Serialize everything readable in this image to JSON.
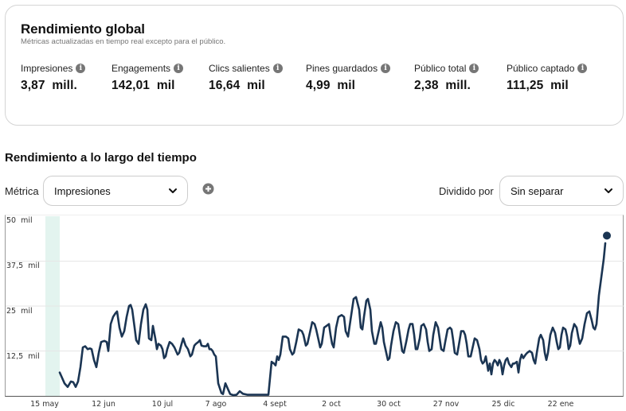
{
  "global": {
    "title": "Rendimiento global",
    "subtitle": "Métricas actualizadas en tiempo real excepto para el público.",
    "metrics": [
      {
        "label": "Impresiones",
        "value": "3,87  mill.",
        "icon": "info-icon"
      },
      {
        "label": "Engagements",
        "value": "142,01  mil",
        "icon": "info-icon"
      },
      {
        "label": "Clics salientes",
        "value": "16,64  mil",
        "icon": "info-icon"
      },
      {
        "label": "Pines guardados",
        "value": "4,99  mil",
        "icon": "info-icon"
      },
      {
        "label": "Público total",
        "value": "2,38  mill.",
        "icon": "info-icon"
      },
      {
        "label": "Público captado",
        "value": "111,25  mil",
        "icon": "info-icon"
      }
    ]
  },
  "over_time": {
    "title": "Rendimiento a lo largo del tiempo",
    "metric_label": "Métrica",
    "metric_value": "Impresiones",
    "add_icon": "plus-circle-icon",
    "split_label": "Dividido por",
    "split_value": "Sin separar"
  },
  "colors": {
    "line": "#1b3553",
    "highlight_band": "#e3f4ef",
    "grid": "#e6e6e6",
    "info_icon": "#767676"
  },
  "chart_data": {
    "type": "line",
    "title": "",
    "xlabel": "",
    "ylabel": "",
    "ylim": [
      0,
      50000
    ],
    "y_ticks": [
      "12,5  mil",
      "25  mil",
      "37,5  mil",
      "50  mil"
    ],
    "x_ticks": [
      "15 may",
      "12 jun",
      "10 jul",
      "7 ago",
      "4 sept",
      "2 oct",
      "30 oct",
      "27 nov",
      "25 dic",
      "22 ene"
    ],
    "grid": true,
    "legend": null,
    "series": [
      {
        "name": "Impresiones",
        "unit": "thousands",
        "points": [
          [
            74,
            6.5
          ],
          [
            80,
            3.5
          ],
          [
            84,
            2.5
          ],
          [
            88,
            4
          ],
          [
            91,
            3.8
          ],
          [
            94,
            2.5
          ],
          [
            97,
            4
          ],
          [
            100,
            8
          ],
          [
            103,
            13.5
          ],
          [
            106,
            13.8
          ],
          [
            109,
            13
          ],
          [
            112,
            13.2
          ],
          [
            114,
            13
          ],
          [
            117,
            10
          ],
          [
            120,
            8
          ],
          [
            123,
            12
          ],
          [
            126,
            15
          ],
          [
            130,
            15.3
          ],
          [
            133,
            15
          ],
          [
            135,
            12.5
          ],
          [
            138,
            20
          ],
          [
            141,
            22
          ],
          [
            144,
            23
          ],
          [
            146,
            23.5
          ],
          [
            149,
            19
          ],
          [
            152,
            16.5
          ],
          [
            155,
            18
          ],
          [
            158,
            22
          ],
          [
            161,
            25
          ],
          [
            163,
            25.3
          ],
          [
            165,
            24
          ],
          [
            168,
            19
          ],
          [
            170,
            15.5
          ],
          [
            173,
            14.5
          ],
          [
            176,
            20
          ],
          [
            179,
            24
          ],
          [
            182,
            25.5
          ],
          [
            184,
            24
          ],
          [
            186,
            16
          ],
          [
            189,
            15.5
          ],
          [
            191,
            19.5
          ],
          [
            194,
            16
          ],
          [
            196,
            13
          ],
          [
            198,
            14.5
          ],
          [
            201,
            14
          ],
          [
            203,
            13
          ],
          [
            205,
            10.5
          ],
          [
            207,
            11
          ],
          [
            209,
            13
          ],
          [
            212,
            15
          ],
          [
            215,
            14.5
          ],
          [
            218,
            13.5
          ],
          [
            220,
            12.5
          ],
          [
            222,
            11.5
          ],
          [
            224,
            12
          ],
          [
            227,
            14.5
          ],
          [
            229,
            16
          ],
          [
            232,
            14
          ],
          [
            235,
            13
          ],
          [
            238,
            11
          ],
          [
            240,
            11.5
          ],
          [
            243,
            14
          ],
          [
            245,
            14.5
          ],
          [
            248,
            15
          ],
          [
            250,
            15.5
          ],
          [
            252,
            14
          ],
          [
            255,
            13.8
          ],
          [
            258,
            13.8
          ],
          [
            260,
            14.5
          ],
          [
            262,
            13
          ],
          [
            264,
            13
          ],
          [
            266,
            12.5
          ],
          [
            268,
            11.5
          ],
          [
            270,
            11
          ],
          [
            273,
            3.5
          ],
          [
            277,
            0.8
          ],
          [
            279,
            0.5
          ],
          [
            282,
            3.5
          ],
          [
            285,
            2
          ],
          [
            288,
            0.5
          ],
          [
            292,
            0.2
          ],
          [
            296,
            0.3
          ],
          [
            300,
            1.3
          ],
          [
            304,
            0.6
          ],
          [
            310,
            0.3
          ],
          [
            320,
            0.3
          ],
          [
            330,
            0.3
          ],
          [
            336,
            0.3
          ],
          [
            340,
            9.5
          ],
          [
            343,
            9
          ],
          [
            345,
            8.5
          ],
          [
            347,
            11
          ],
          [
            349,
            10
          ],
          [
            351,
            11.5
          ],
          [
            354,
            16.5
          ],
          [
            358,
            16.5
          ],
          [
            361,
            16
          ],
          [
            363,
            13
          ],
          [
            366,
            11.5
          ],
          [
            368,
            12
          ],
          [
            371,
            15
          ],
          [
            374,
            18.5
          ],
          [
            378,
            18
          ],
          [
            380,
            17
          ],
          [
            383,
            14
          ],
          [
            385,
            14.5
          ],
          [
            388,
            17.5
          ],
          [
            391,
            20.5
          ],
          [
            394,
            20
          ],
          [
            396,
            18.5
          ],
          [
            399,
            15.5
          ],
          [
            401,
            13.5
          ],
          [
            403,
            14.5
          ],
          [
            406,
            19
          ],
          [
            409,
            19.5
          ],
          [
            412,
            20
          ],
          [
            414,
            17
          ],
          [
            416,
            14.5
          ],
          [
            418,
            13.5
          ],
          [
            421,
            19
          ],
          [
            424,
            22
          ],
          [
            428,
            22.5
          ],
          [
            431,
            22
          ],
          [
            433,
            18
          ],
          [
            436,
            16.5
          ],
          [
            439,
            21
          ],
          [
            443,
            27
          ],
          [
            446,
            27.5
          ],
          [
            450,
            24
          ],
          [
            452,
            19
          ],
          [
            454,
            18.5
          ],
          [
            456,
            22
          ],
          [
            459,
            26.5
          ],
          [
            461,
            27
          ],
          [
            464,
            24
          ],
          [
            466,
            18
          ],
          [
            469,
            14.5
          ],
          [
            471,
            14.5
          ],
          [
            474,
            17.5
          ],
          [
            477,
            20.5
          ],
          [
            479,
            19
          ],
          [
            481,
            15
          ],
          [
            484,
            12
          ],
          [
            486,
            10
          ],
          [
            488,
            10.5
          ],
          [
            490,
            14
          ],
          [
            493,
            18
          ],
          [
            496,
            20.5
          ],
          [
            499,
            20
          ],
          [
            501,
            17
          ],
          [
            504,
            12.5
          ],
          [
            506,
            12
          ],
          [
            509,
            15
          ],
          [
            512,
            18.5
          ],
          [
            514,
            20
          ],
          [
            517,
            20
          ],
          [
            519,
            17
          ],
          [
            521,
            13
          ],
          [
            523,
            13
          ],
          [
            526,
            16
          ],
          [
            528,
            19.5
          ],
          [
            531,
            20
          ],
          [
            534,
            18.5
          ],
          [
            536,
            15
          ],
          [
            538,
            12.5
          ],
          [
            541,
            13
          ],
          [
            543,
            17
          ],
          [
            546,
            20.5
          ],
          [
            549,
            19
          ],
          [
            551,
            16
          ],
          [
            553,
            13
          ],
          [
            556,
            12.5
          ],
          [
            558,
            15
          ],
          [
            561,
            18.5
          ],
          [
            564,
            19
          ],
          [
            566,
            18.5
          ],
          [
            568,
            15.5
          ],
          [
            570,
            12
          ],
          [
            573,
            11.5
          ],
          [
            575,
            14
          ],
          [
            578,
            18
          ],
          [
            581,
            18
          ],
          [
            583,
            17
          ],
          [
            585,
            14.5
          ],
          [
            587,
            11
          ],
          [
            590,
            11
          ],
          [
            592,
            13
          ],
          [
            595,
            16
          ],
          [
            598,
            15.5
          ],
          [
            601,
            13
          ],
          [
            603,
            10
          ],
          [
            605,
            9
          ],
          [
            607,
            9.5
          ],
          [
            609,
            11
          ],
          [
            612,
            7
          ],
          [
            614,
            9
          ],
          [
            616,
            6
          ],
          [
            618,
            9
          ],
          [
            620,
            10
          ],
          [
            622,
            9.5
          ],
          [
            624,
            8.5
          ],
          [
            626,
            10
          ],
          [
            628,
            9
          ],
          [
            630,
            6
          ],
          [
            632,
            8.5
          ],
          [
            634,
            10
          ],
          [
            636,
            10.5
          ],
          [
            638,
            9
          ],
          [
            641,
            8
          ],
          [
            643,
            9
          ],
          [
            645,
            9
          ],
          [
            648,
            9.5
          ],
          [
            650,
            6.5
          ],
          [
            652,
            10
          ],
          [
            654,
            11.5
          ],
          [
            656,
            10.5
          ],
          [
            659,
            11.5
          ],
          [
            661,
            12
          ],
          [
            664,
            12.5
          ],
          [
            667,
            12
          ],
          [
            669,
            10
          ],
          [
            671,
            9
          ],
          [
            673,
            12
          ],
          [
            676,
            16
          ],
          [
            678,
            17
          ],
          [
            681,
            15.5
          ],
          [
            683,
            12
          ],
          [
            685,
            10
          ],
          [
            687,
            12
          ],
          [
            690,
            17
          ],
          [
            693,
            19
          ],
          [
            696,
            17.5
          ],
          [
            698,
            15
          ],
          [
            700,
            13
          ],
          [
            702,
            13.5
          ],
          [
            704,
            17
          ],
          [
            706,
            19
          ],
          [
            709,
            18.5
          ],
          [
            711,
            16.5
          ],
          [
            713,
            13
          ],
          [
            715,
            14
          ],
          [
            717,
            17.5
          ],
          [
            720,
            20
          ],
          [
            723,
            19
          ],
          [
            725,
            16.5
          ],
          [
            727,
            14.5
          ],
          [
            730,
            16
          ],
          [
            733,
            20
          ],
          [
            736,
            23
          ],
          [
            739,
            23.5
          ],
          [
            742,
            21
          ],
          [
            744,
            19
          ],
          [
            746,
            18.5
          ],
          [
            748,
            20
          ],
          [
            751,
            28
          ],
          [
            754,
            33
          ],
          [
            757,
            38
          ],
          [
            759,
            42.5
          ]
        ],
        "last_point_marker": [
          761,
          43.5
        ]
      }
    ],
    "highlight_band_x": [
      56,
      74
    ]
  }
}
